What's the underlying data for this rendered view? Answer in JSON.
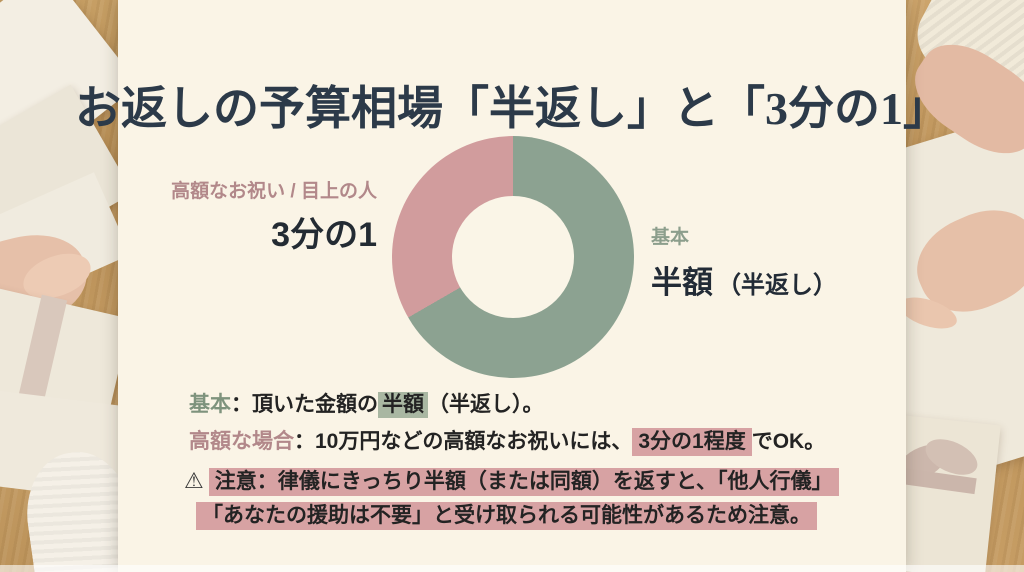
{
  "page": {
    "title": "お返しの予算相場「半返し」と「3分の1」"
  },
  "chart_data": {
    "type": "pie",
    "subtype": "donut",
    "title": "お返しの予算相場「半返し」と「3分の1」",
    "segments": [
      {
        "name": "基本：半額（半返し）",
        "fraction": 0.667,
        "angle_deg": 240,
        "color": "#8CA291"
      },
      {
        "name": "高額なお祝い / 目上の人：3分の1",
        "fraction": 0.333,
        "angle_deg": 120,
        "color": "#D19C9D"
      }
    ],
    "start_angle": "top",
    "direction": "clockwise",
    "hole_ratio": 0.5,
    "hole_color": "#FAF5E7",
    "legend_position": "labels-beside-chart"
  },
  "labels": {
    "left": {
      "caption": "高額なお祝い / 目上の人",
      "value": "3分の1"
    },
    "right": {
      "caption": "基本",
      "value_main": "半額",
      "value_sub": "（半返し）"
    }
  },
  "notes": {
    "basic": {
      "lead": "基本",
      "pre": "：頂いた金額の",
      "highlight": "半額",
      "post": "（半返し）。"
    },
    "expensive": {
      "lead": "高額な場合",
      "pre": "：10万円などの高額なお祝いには、",
      "highlight": "3分の1程度",
      "post": "でOK。"
    },
    "warning": {
      "icon": "⚠",
      "line1": "注意：律儀にきっちり半額（または同額）を返すと、「他人行儀」",
      "line2": "「あなたの援助は不要」と受け取られる可能性があるため注意。"
    }
  },
  "colors": {
    "card_background": "#FAF4E6",
    "title_text": "#2C3A49",
    "segment_green": "#8CA291",
    "segment_pink": "#D19C9D",
    "label_green": "#8C9E8C",
    "label_pink": "#B2888A",
    "highlight_green": "#A9B7A2",
    "highlight_pink": "#D7A2A3",
    "body_text": "#232323"
  }
}
